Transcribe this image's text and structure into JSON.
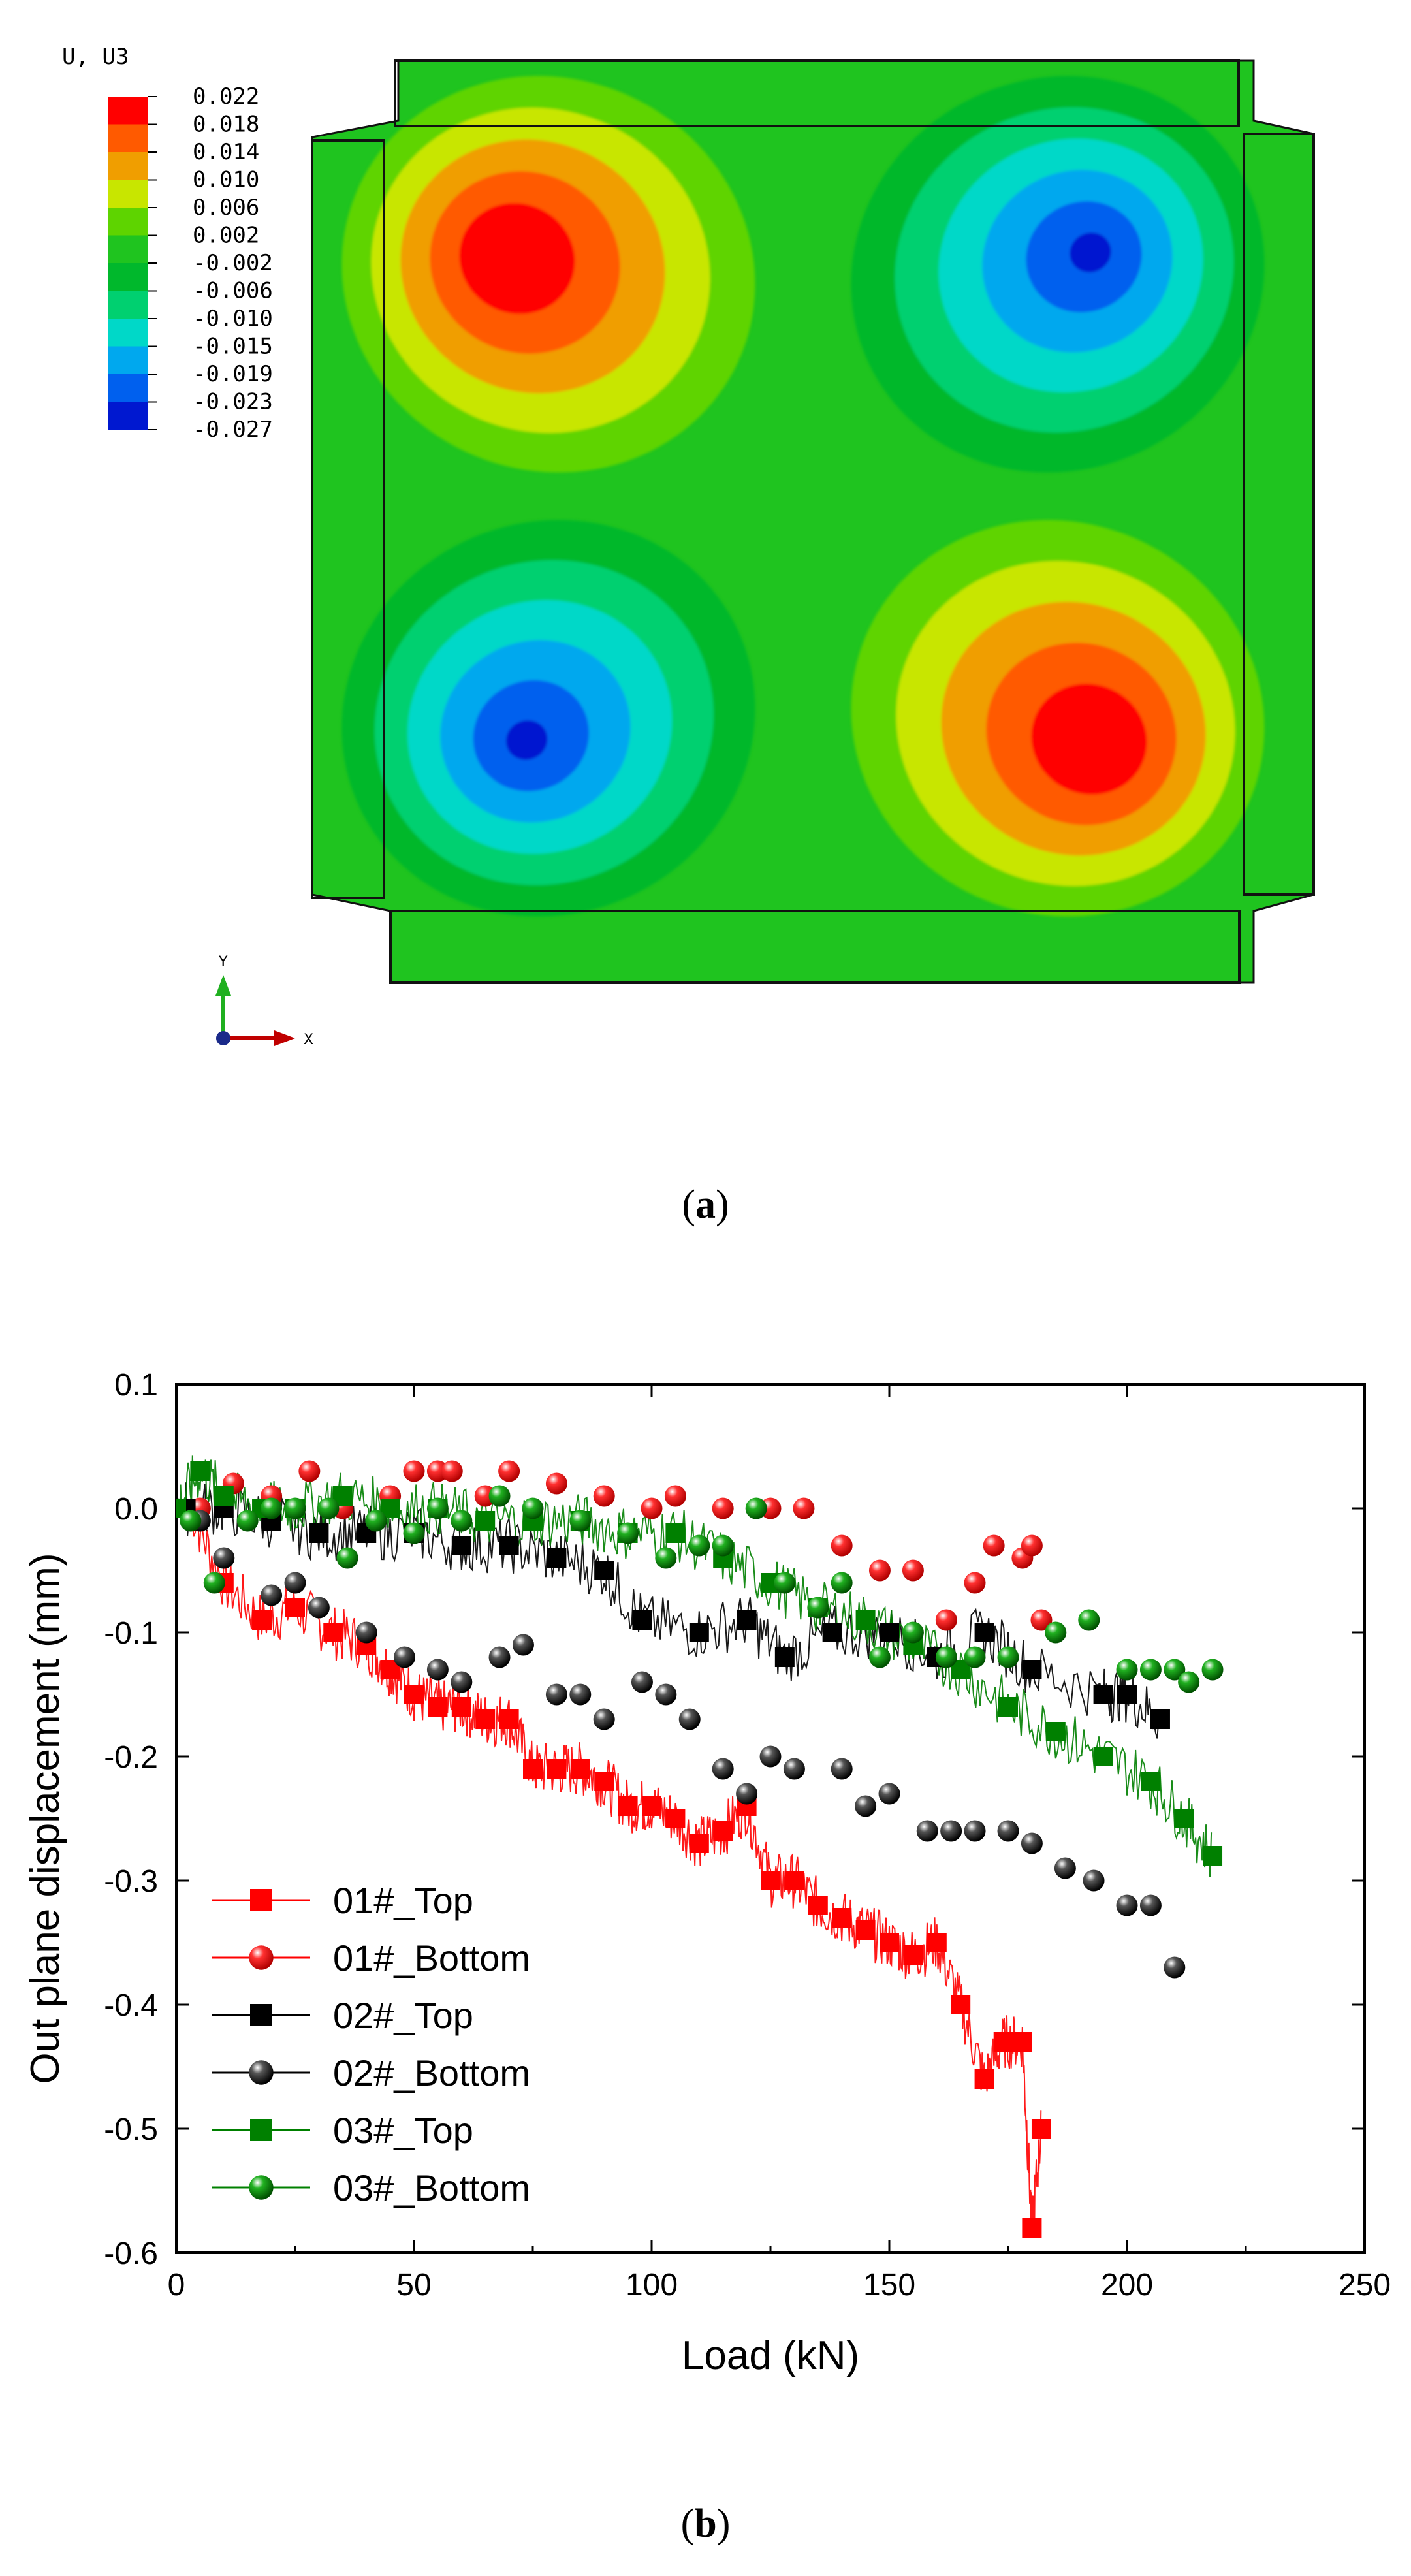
{
  "contour_panel": {
    "panel_label": "a",
    "legend": {
      "title": "U, U3",
      "levels": [
        "0.022",
        "0.018",
        "0.014",
        "0.010",
        "0.006",
        "0.002",
        "-0.002",
        "-0.006",
        "-0.010",
        "-0.015",
        "-0.019",
        "-0.023",
        "-0.027"
      ],
      "colors": [
        "#ff0000",
        "#ff5a00",
        "#f09e00",
        "#c8e600",
        "#5ed400",
        "#1fc41f",
        "#00b82c",
        "#00d070",
        "#00d8c8",
        "#00a8ee",
        "#0060ee",
        "#0018d0"
      ]
    },
    "background_color": "#1fc41f",
    "triad": {
      "y_label": "Y",
      "x_label": "X"
    }
  },
  "chart_data": {
    "panel_label": "b",
    "type": "scatter",
    "title": "",
    "xlabel": "Load (kN)",
    "ylabel": "Out plane displacement (mm)",
    "xlim": [
      0,
      250
    ],
    "ylim": [
      -0.6,
      0.1
    ],
    "xticks": [
      0,
      50,
      100,
      150,
      200,
      250
    ],
    "yticks": [
      0.1,
      0.0,
      -0.1,
      -0.2,
      -0.3,
      -0.4,
      -0.5,
      -0.6
    ],
    "grid": false,
    "legend_position": "bottom-left",
    "series": [
      {
        "name": "01#_Top",
        "color": "#ff0000",
        "marker": "square",
        "x": [
          3,
          10,
          18,
          25,
          33,
          40,
          45,
          50,
          55,
          60,
          65,
          70,
          75,
          80,
          85,
          90,
          95,
          100,
          105,
          110,
          115,
          120,
          125,
          130,
          135,
          140,
          145,
          150,
          155,
          160,
          165,
          170,
          174,
          178,
          180,
          182
        ],
        "y": [
          0.0,
          -0.06,
          -0.09,
          -0.08,
          -0.1,
          -0.11,
          -0.13,
          -0.15,
          -0.16,
          -0.16,
          -0.17,
          -0.17,
          -0.21,
          -0.21,
          -0.21,
          -0.22,
          -0.24,
          -0.24,
          -0.25,
          -0.27,
          -0.26,
          -0.24,
          -0.3,
          -0.3,
          -0.32,
          -0.33,
          -0.34,
          -0.35,
          -0.36,
          -0.35,
          -0.4,
          -0.46,
          -0.43,
          -0.43,
          -0.58,
          -0.5
        ]
      },
      {
        "name": "01#_Bottom",
        "color": "#ff0000",
        "marker": "sphere",
        "x": [
          5,
          12,
          20,
          28,
          35,
          45,
          50,
          55,
          58,
          65,
          70,
          80,
          90,
          100,
          105,
          115,
          125,
          132,
          140,
          148,
          155,
          162,
          168,
          172,
          178,
          180,
          182
        ],
        "y": [
          0.0,
          0.02,
          0.01,
          0.03,
          0.0,
          0.01,
          0.03,
          0.03,
          0.03,
          0.01,
          0.03,
          0.02,
          0.01,
          0.0,
          0.01,
          0.0,
          0.0,
          0.0,
          -0.03,
          -0.05,
          -0.05,
          -0.09,
          -0.06,
          -0.03,
          -0.04,
          -0.03,
          -0.09
        ]
      },
      {
        "name": "02#_Top",
        "color": "#000000",
        "marker": "square",
        "x": [
          2,
          10,
          20,
          30,
          40,
          50,
          60,
          70,
          80,
          90,
          98,
          110,
          120,
          128,
          138,
          150,
          160,
          170,
          180,
          195,
          200,
          207
        ],
        "y": [
          0.0,
          0.0,
          -0.01,
          -0.02,
          -0.02,
          -0.02,
          -0.03,
          -0.03,
          -0.04,
          -0.05,
          -0.09,
          -0.1,
          -0.09,
          -0.12,
          -0.1,
          -0.1,
          -0.12,
          -0.1,
          -0.13,
          -0.15,
          -0.15,
          -0.17
        ]
      },
      {
        "name": "02#_Bottom",
        "color": "#000000",
        "marker": "sphere",
        "x": [
          5,
          10,
          20,
          25,
          30,
          40,
          48,
          55,
          60,
          68,
          73,
          80,
          85,
          90,
          98,
          103,
          108,
          115,
          120,
          125,
          130,
          140,
          145,
          150,
          158,
          163,
          168,
          175,
          180,
          187,
          193,
          200,
          205,
          210
        ],
        "y": [
          -0.01,
          -0.04,
          -0.07,
          -0.06,
          -0.08,
          -0.1,
          -0.12,
          -0.13,
          -0.14,
          -0.12,
          -0.11,
          -0.15,
          -0.15,
          -0.17,
          -0.14,
          -0.15,
          -0.17,
          -0.21,
          -0.23,
          -0.2,
          -0.21,
          -0.21,
          -0.24,
          -0.23,
          -0.26,
          -0.26,
          -0.26,
          -0.26,
          -0.27,
          -0.29,
          -0.3,
          -0.32,
          -0.32,
          -0.37
        ]
      },
      {
        "name": "03#_Top",
        "color": "#008000",
        "marker": "square",
        "x": [
          0,
          5,
          10,
          18,
          25,
          35,
          45,
          55,
          65,
          75,
          85,
          95,
          105,
          115,
          125,
          135,
          145,
          155,
          165,
          175,
          185,
          195,
          205,
          212,
          218
        ],
        "y": [
          0.0,
          0.03,
          0.01,
          0.0,
          0.0,
          0.01,
          0.0,
          0.0,
          -0.01,
          -0.01,
          -0.01,
          -0.02,
          -0.02,
          -0.04,
          -0.06,
          -0.08,
          -0.09,
          -0.11,
          -0.13,
          -0.16,
          -0.18,
          -0.2,
          -0.22,
          -0.25,
          -0.28
        ]
      },
      {
        "name": "03#_Bottom",
        "color": "#008000",
        "marker": "sphere",
        "x": [
          3,
          8,
          15,
          20,
          25,
          32,
          36,
          42,
          50,
          55,
          60,
          68,
          75,
          85,
          95,
          103,
          110,
          115,
          122,
          128,
          135,
          140,
          148,
          155,
          162,
          168,
          175,
          185,
          192,
          200,
          205,
          210,
          213,
          218
        ],
        "y": [
          -0.01,
          -0.06,
          -0.01,
          0.0,
          0.0,
          0.0,
          -0.04,
          -0.01,
          -0.02,
          0.0,
          -0.01,
          0.01,
          0.0,
          -0.01,
          -0.02,
          -0.04,
          -0.03,
          -0.03,
          0.0,
          -0.06,
          -0.08,
          -0.06,
          -0.12,
          -0.1,
          -0.12,
          -0.12,
          -0.12,
          -0.1,
          -0.09,
          -0.13,
          -0.13,
          -0.13,
          -0.14,
          -0.13
        ]
      }
    ]
  }
}
